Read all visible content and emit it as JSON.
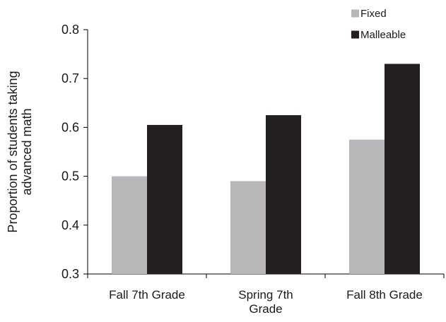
{
  "chart_data": {
    "type": "bar",
    "categories": [
      [
        "Fall 7th Grade"
      ],
      [
        "Spring 7th",
        "Grade"
      ],
      [
        "Fall 8th Grade"
      ]
    ],
    "series": [
      {
        "name": "Fixed",
        "values": [
          0.5,
          0.49,
          0.575
        ],
        "color": "#b7b7b9"
      },
      {
        "name": "Malleable",
        "values": [
          0.605,
          0.625,
          0.73
        ],
        "color": "#231f20"
      }
    ],
    "title": "",
    "xlabel": "",
    "ylabel": [
      "Proportion of students taking",
      "advanced math"
    ],
    "ylim": [
      0.3,
      0.8
    ],
    "yticks": [
      0.3,
      0.4,
      0.5,
      0.6,
      0.7,
      0.8
    ],
    "ytick_labels": [
      "0.3",
      "0.4",
      "0.5",
      "0.6",
      "0.7",
      "0.8"
    ],
    "grid": false,
    "legend": "top-right",
    "axis_color": "#000000"
  }
}
